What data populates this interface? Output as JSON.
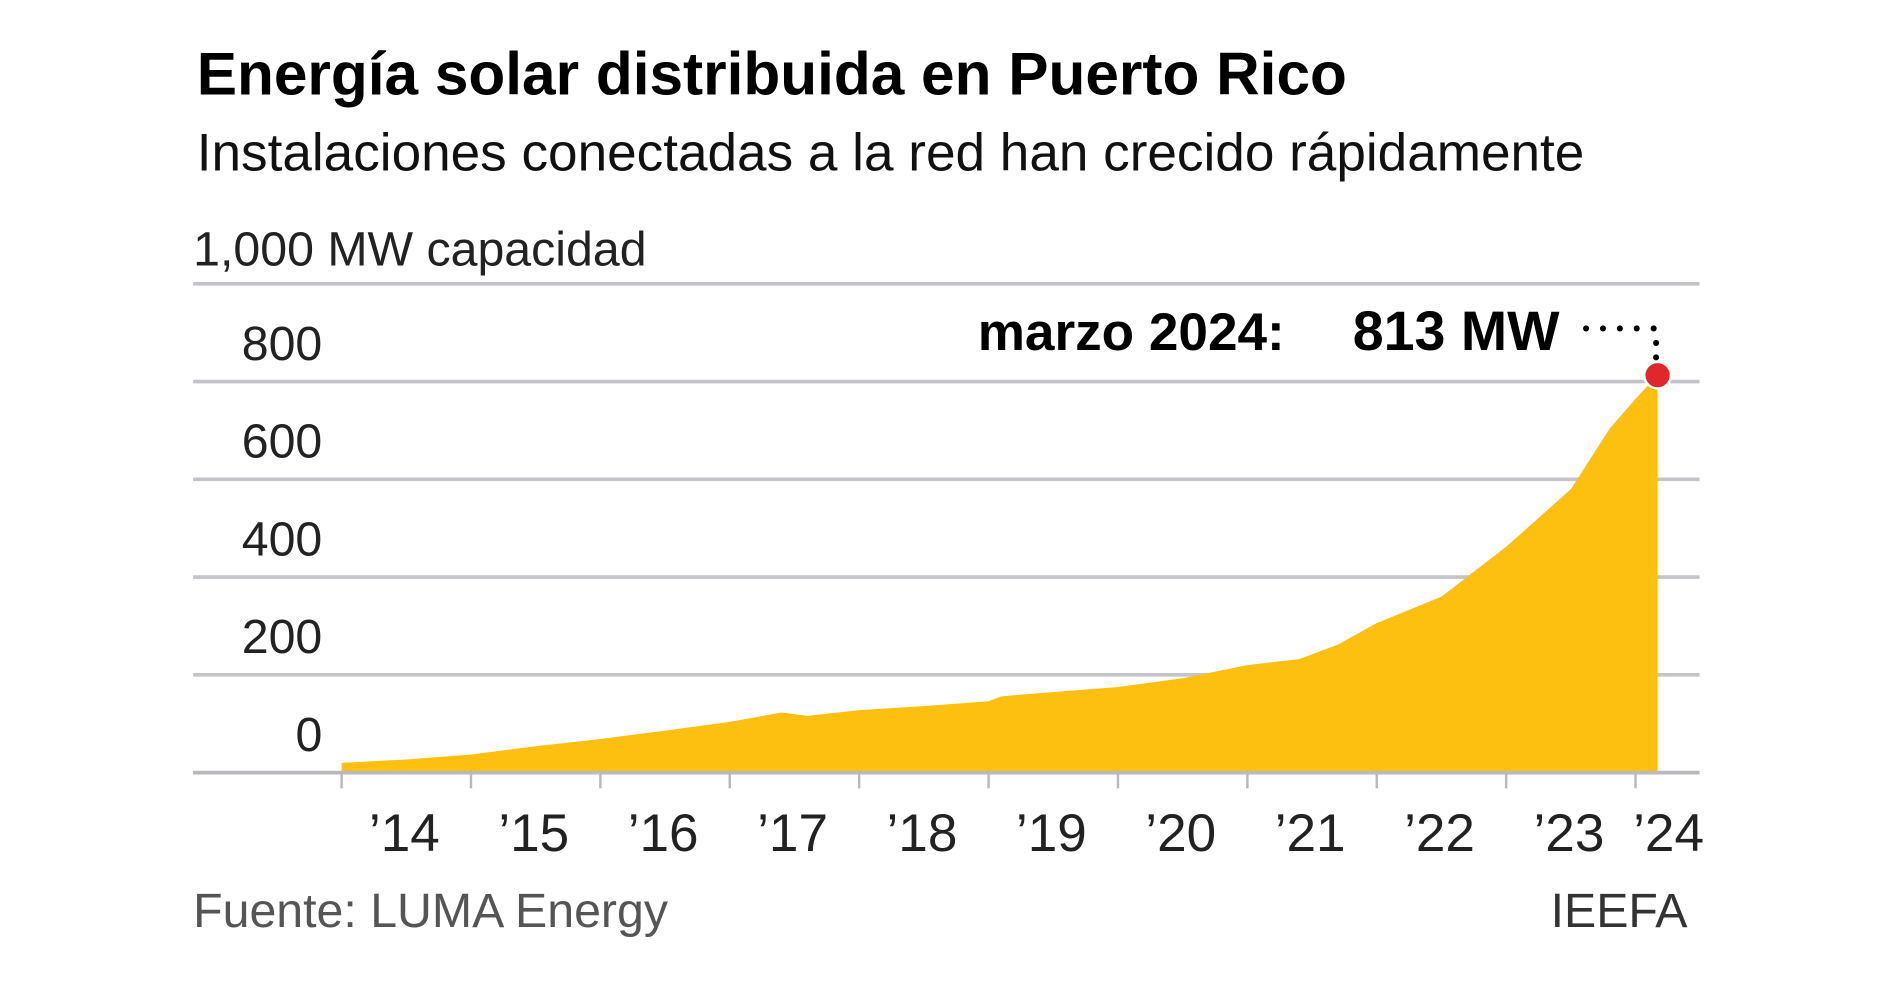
{
  "chart_data": {
    "type": "area",
    "title": "Energía solar distribuida en Puerto Rico",
    "subtitle": "Instalaciones conectadas a la red han crecido rápidamente",
    "ylabel": "1,000 MW capacidad",
    "ylim": [
      0,
      1000
    ],
    "yticks": [
      0,
      200,
      400,
      600,
      800
    ],
    "ytick_labels": [
      "0",
      "200",
      "400",
      "600",
      "800"
    ],
    "xlim": [
      2014,
      2024.17
    ],
    "xticks": [
      2014,
      2015,
      2016,
      2017,
      2018,
      2019,
      2020,
      2021,
      2022,
      2023,
      2024
    ],
    "xtick_labels": [
      "’14",
      "’15",
      "’16",
      "’17",
      "’18",
      "’19",
      "’20",
      "’21",
      "’22",
      "’23",
      "’24"
    ],
    "grid": true,
    "color": "#FDC010",
    "highlight_color": "#E0282A",
    "annotation": {
      "label": "marzo 2024:",
      "value": "813 MW",
      "x": 2024.17,
      "y": 813
    },
    "x": [
      2014.0,
      2014.5,
      2015.0,
      2015.5,
      2016.0,
      2016.5,
      2017.0,
      2017.4,
      2017.6,
      2018.0,
      2018.5,
      2019.0,
      2019.1,
      2019.5,
      2020.0,
      2020.5,
      2021.0,
      2021.4,
      2021.7,
      2022.0,
      2022.5,
      2023.0,
      2023.5,
      2023.8,
      2024.0,
      2024.17
    ],
    "values": [
      20,
      27,
      37,
      54,
      69,
      86,
      104,
      123,
      116,
      128,
      136,
      146,
      156,
      165,
      175,
      193,
      220,
      232,
      262,
      306,
      360,
      462,
      580,
      704,
      765,
      813
    ]
  },
  "footer": {
    "source": "Fuente: LUMA Energy",
    "brand": "IEEFA"
  }
}
